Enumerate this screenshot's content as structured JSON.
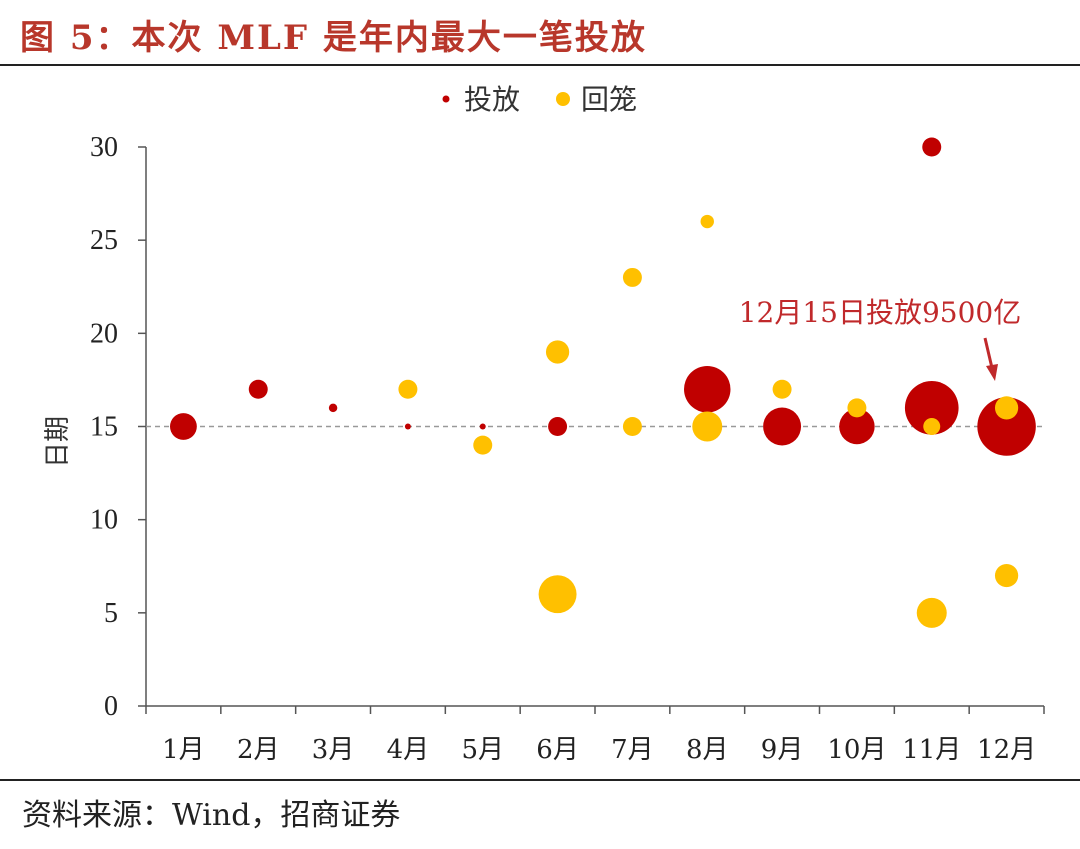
{
  "title": "图 5：本次 MLF 是年内最大一笔投放",
  "source": "资料来源：Wind，招商证券",
  "chart_data": {
    "type": "scatter",
    "title": "图 5：本次 MLF 是年内最大一笔投放",
    "xlabel": "",
    "ylabel": "日期",
    "ylim": [
      0,
      30
    ],
    "yticks": [
      0,
      5,
      10,
      15,
      20,
      25,
      30
    ],
    "categories": [
      "1月",
      "2月",
      "3月",
      "4月",
      "5月",
      "6月",
      "7月",
      "8月",
      "9月",
      "10月",
      "11月",
      "12月"
    ],
    "reference_line": 15,
    "legend": [
      "投放",
      "回笼"
    ],
    "series": [
      {
        "name": "投放",
        "color": "#c00000",
        "points": [
          {
            "month": 1,
            "day": 15,
            "size": 2000
          },
          {
            "month": 2,
            "day": 17,
            "size": 1000
          },
          {
            "month": 3,
            "day": 16,
            "size": 200
          },
          {
            "month": 4,
            "day": 15,
            "size": 100
          },
          {
            "month": 5,
            "day": 15,
            "size": 100
          },
          {
            "month": 6,
            "day": 15,
            "size": 1000
          },
          {
            "month": 8,
            "day": 17,
            "size": 6000
          },
          {
            "month": 9,
            "day": 15,
            "size": 4000
          },
          {
            "month": 10,
            "day": 15,
            "size": 3500
          },
          {
            "month": 11,
            "day": 16,
            "size": 8000
          },
          {
            "month": 11,
            "day": 30,
            "size": 1000
          },
          {
            "month": 12,
            "day": 15,
            "size": 9500
          }
        ]
      },
      {
        "name": "回笼",
        "color": "#ffc000",
        "points": [
          {
            "month": 4,
            "day": 17,
            "size": 1000
          },
          {
            "month": 5,
            "day": 14,
            "size": 1000
          },
          {
            "month": 6,
            "day": 19,
            "size": 1500
          },
          {
            "month": 6,
            "day": 6,
            "size": 4000
          },
          {
            "month": 7,
            "day": 23,
            "size": 1000
          },
          {
            "month": 7,
            "day": 15,
            "size": 1000
          },
          {
            "month": 8,
            "day": 26,
            "size": 500
          },
          {
            "month": 8,
            "day": 15,
            "size": 2500
          },
          {
            "month": 9,
            "day": 17,
            "size": 1000
          },
          {
            "month": 10,
            "day": 16,
            "size": 1000
          },
          {
            "month": 11,
            "day": 15,
            "size": 800
          },
          {
            "month": 11,
            "day": 5,
            "size": 2500
          },
          {
            "month": 12,
            "day": 16,
            "size": 1500
          },
          {
            "month": 12,
            "day": 7,
            "size": 1500
          }
        ]
      }
    ],
    "annotation": {
      "text": "12月15日投放9500亿",
      "month": 12,
      "day": 15
    }
  }
}
